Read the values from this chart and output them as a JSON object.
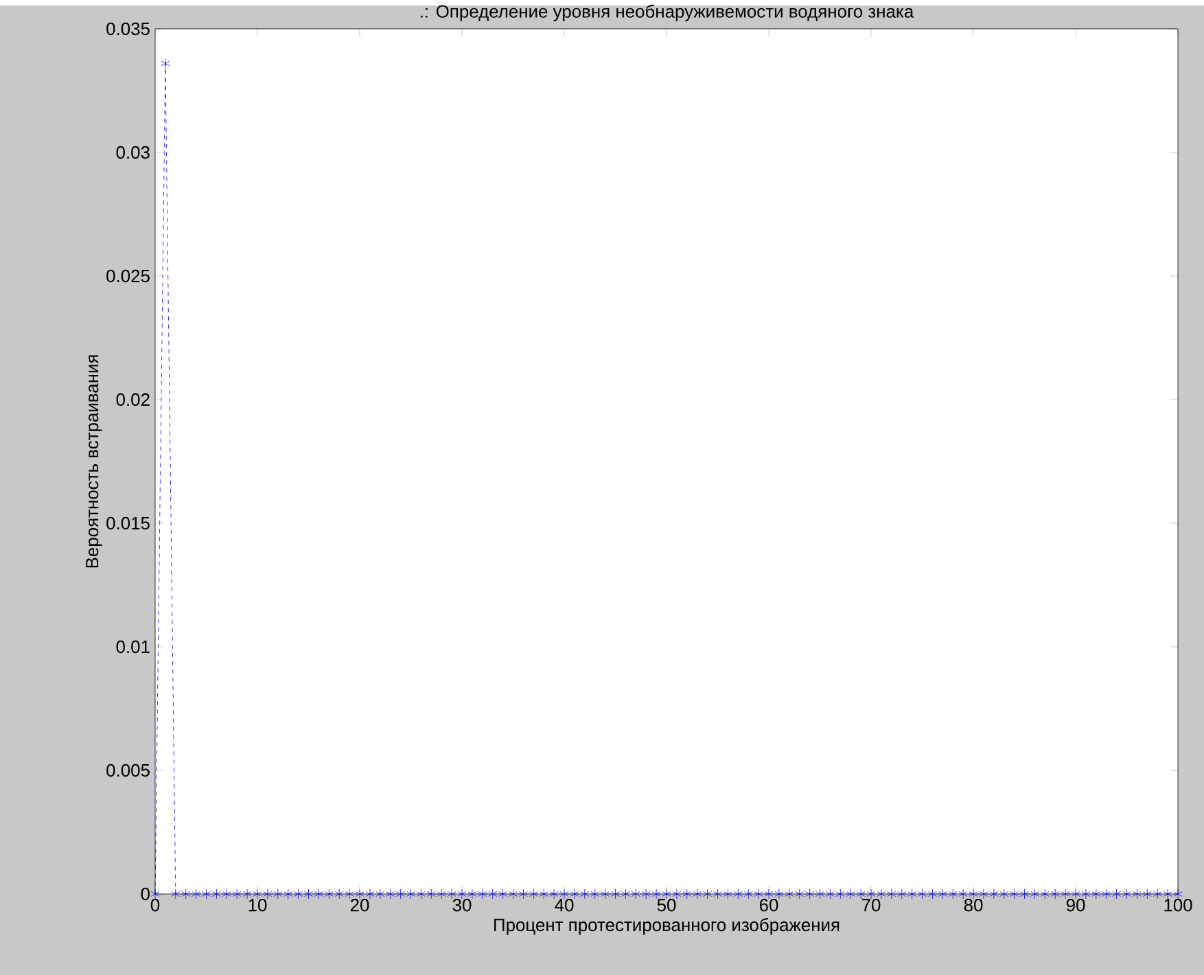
{
  "chart_data": {
    "type": "line",
    "title": ".: Определение уровня необнаруживемости водяного знака",
    "xlabel": "Процент протестированного изображения",
    "ylabel": "Вероятность встраивания",
    "x": [
      0,
      1,
      2,
      3,
      4,
      5,
      6,
      7,
      8,
      9,
      10,
      11,
      12,
      13,
      14,
      15,
      16,
      17,
      18,
      19,
      20,
      21,
      22,
      23,
      24,
      25,
      26,
      27,
      28,
      29,
      30,
      31,
      32,
      33,
      34,
      35,
      36,
      37,
      38,
      39,
      40,
      41,
      42,
      43,
      44,
      45,
      46,
      47,
      48,
      49,
      50,
      51,
      52,
      53,
      54,
      55,
      56,
      57,
      58,
      59,
      60,
      61,
      62,
      63,
      64,
      65,
      66,
      67,
      68,
      69,
      70,
      71,
      72,
      73,
      74,
      75,
      76,
      77,
      78,
      79,
      80,
      81,
      82,
      83,
      84,
      85,
      86,
      87,
      88,
      89,
      90,
      91,
      92,
      93,
      94,
      95,
      96,
      97,
      98,
      99,
      100
    ],
    "series": [
      {
        "color": "#0000ff",
        "values": [
          0,
          0.0336,
          0,
          0,
          0,
          0,
          0,
          0,
          0,
          0,
          0,
          0,
          0,
          0,
          0,
          0,
          0,
          0,
          0,
          0,
          0,
          0,
          0,
          0,
          0,
          0,
          0,
          0,
          0,
          0,
          0,
          0,
          0,
          0,
          0,
          0,
          0,
          0,
          0,
          0,
          0,
          0,
          0,
          0,
          0,
          0,
          0,
          0,
          0,
          0,
          0,
          0,
          0,
          0,
          0,
          0,
          0,
          0,
          0,
          0,
          0,
          0,
          0,
          0,
          0,
          0,
          0,
          0,
          0,
          0,
          0,
          0,
          0,
          0,
          0,
          0,
          0,
          0,
          0,
          0,
          0,
          0,
          0,
          0,
          0,
          0,
          0,
          0,
          0,
          0,
          0,
          0,
          0,
          0,
          0,
          0,
          0,
          0,
          0,
          0,
          0
        ]
      }
    ],
    "xlim": [
      0,
      100
    ],
    "ylim": [
      0,
      0.035
    ],
    "xticks": [
      0,
      10,
      20,
      30,
      40,
      50,
      60,
      70,
      80,
      90,
      100
    ],
    "yticks": [
      0,
      0.005,
      0.01,
      0.015,
      0.02,
      0.025,
      0.03,
      0.035
    ],
    "marker": "cross",
    "line_style": "dashed",
    "grid": false
  }
}
